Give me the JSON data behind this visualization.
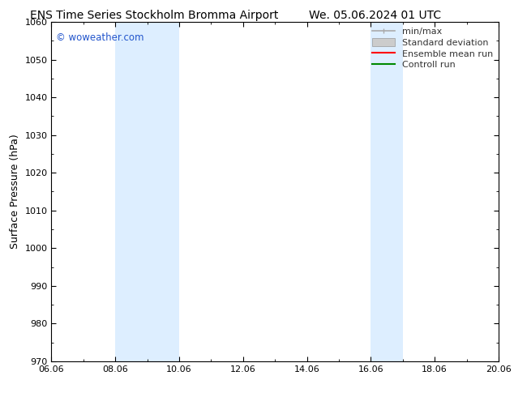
{
  "title_left": "ENS Time Series Stockholm Bromma Airport",
  "title_right": "We. 05.06.2024 01 UTC",
  "ylabel": "Surface Pressure (hPa)",
  "ylim": [
    970,
    1060
  ],
  "yticks": [
    970,
    980,
    990,
    1000,
    1010,
    1020,
    1030,
    1040,
    1050,
    1060
  ],
  "xlim_start": 0,
  "xlim_end": 14,
  "xtick_labels": [
    "06.06",
    "08.06",
    "10.06",
    "12.06",
    "14.06",
    "16.06",
    "18.06",
    "20.06"
  ],
  "xtick_positions": [
    0,
    2,
    4,
    6,
    8,
    10,
    12,
    14
  ],
  "shaded_bands": [
    {
      "x_start": 2,
      "x_end": 4
    },
    {
      "x_start": 10,
      "x_end": 11
    }
  ],
  "band_color": "#ddeeff",
  "watermark_text": "© woweather.com",
  "watermark_color": "#2255cc",
  "bg_color": "#ffffff",
  "legend_items": [
    {
      "label": "min/max",
      "color": "#aaaaaa",
      "type": "errbar"
    },
    {
      "label": "Standard deviation",
      "color": "#cccccc",
      "type": "box"
    },
    {
      "label": "Ensemble mean run",
      "color": "#ff0000",
      "type": "line"
    },
    {
      "label": "Controll run",
      "color": "#008800",
      "type": "line"
    }
  ],
  "title_fontsize": 10,
  "axis_fontsize": 9,
  "tick_fontsize": 8,
  "legend_fontsize": 8,
  "legend_color": "#333333"
}
